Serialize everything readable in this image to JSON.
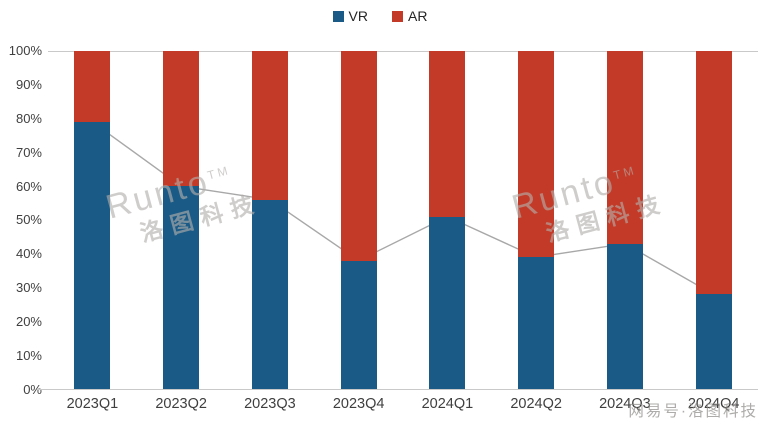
{
  "legend": [
    {
      "label": "VR",
      "color": "#1a5a86"
    },
    {
      "label": "AR",
      "color": "#c43a28"
    }
  ],
  "chart_data": {
    "type": "bar",
    "stacked": true,
    "title": "",
    "xlabel": "",
    "ylabel": "",
    "categories": [
      "2023Q1",
      "2023Q2",
      "2023Q3",
      "2023Q4",
      "2024Q1",
      "2024Q2",
      "2024Q3",
      "2024Q4"
    ],
    "series": [
      {
        "name": "VR",
        "color": "#1a5a86",
        "values": [
          79,
          60,
          56,
          38,
          51,
          39,
          43,
          28
        ]
      },
      {
        "name": "AR",
        "color": "#c43a28",
        "values": [
          21,
          40,
          44,
          62,
          49,
          61,
          57,
          72
        ]
      }
    ],
    "trend_line": {
      "name": "VR share line",
      "color": "#a8a8a8",
      "values": [
        79,
        60,
        56,
        38,
        51,
        39,
        43,
        28
      ]
    },
    "ylim": [
      0,
      100
    ],
    "y_ticks": [
      "100%",
      "90%",
      "80%",
      "70%",
      "60%",
      "50%",
      "40%",
      "30%",
      "20%",
      "10%",
      "0%"
    ],
    "grid": "top and baseline only",
    "legend_position": "top-center"
  },
  "watermark": {
    "brand": "Runto",
    "tm": "TM",
    "cn": "洛图科技"
  },
  "watermark_bottom_right": "网易号·洛图科技"
}
